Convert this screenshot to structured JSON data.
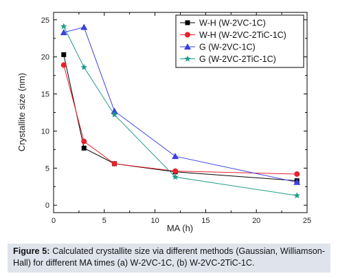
{
  "chart_data": {
    "type": "line",
    "xlabel": "MA (h)",
    "ylabel": "Crystallite size (nm)",
    "xlim": [
      0,
      25
    ],
    "ylim": [
      -1,
      26
    ],
    "xticks": [
      "0",
      "5",
      "10",
      "15",
      "20",
      "25"
    ],
    "yticks": [
      "0",
      "5",
      "10",
      "15",
      "20",
      "25"
    ],
    "grid": false,
    "legend_position": "top-right",
    "series": [
      {
        "name": "W-H (W-2VC-1C)",
        "marker": "square",
        "color": "#000000",
        "points": [
          [
            1,
            20.3
          ],
          [
            3,
            7.7
          ],
          [
            6,
            5.6
          ],
          [
            12,
            4.5
          ],
          [
            24,
            3.3
          ]
        ]
      },
      {
        "name": "W-H (W-2VC-2TiC-1C)",
        "marker": "circle",
        "color": "#e8212a",
        "points": [
          [
            1,
            18.9
          ],
          [
            3,
            8.6
          ],
          [
            6,
            5.6
          ],
          [
            12,
            4.6
          ],
          [
            24,
            4.2
          ]
        ]
      },
      {
        "name": "G (W-2VC-1C)",
        "marker": "triangle",
        "color": "#3a3fe0",
        "points": [
          [
            1,
            23.3
          ],
          [
            3,
            24.0
          ],
          [
            6,
            12.7
          ],
          [
            12,
            6.6
          ],
          [
            24,
            3.1
          ]
        ]
      },
      {
        "name": "G (W-2VC-2TiC-1C)",
        "marker": "star",
        "color": "#239a8a",
        "points": [
          [
            1,
            24.1
          ],
          [
            3,
            18.6
          ],
          [
            6,
            12.2
          ],
          [
            12,
            3.8
          ],
          [
            24,
            1.3
          ]
        ]
      }
    ]
  },
  "caption": {
    "label": "Figure 5:",
    "text": " Calculated crystallite size via different methods (Gaussian, Williamson-Hall) for different MA times (a) W-2VC-1C, (b) W-2VC-2TiC-1C."
  }
}
